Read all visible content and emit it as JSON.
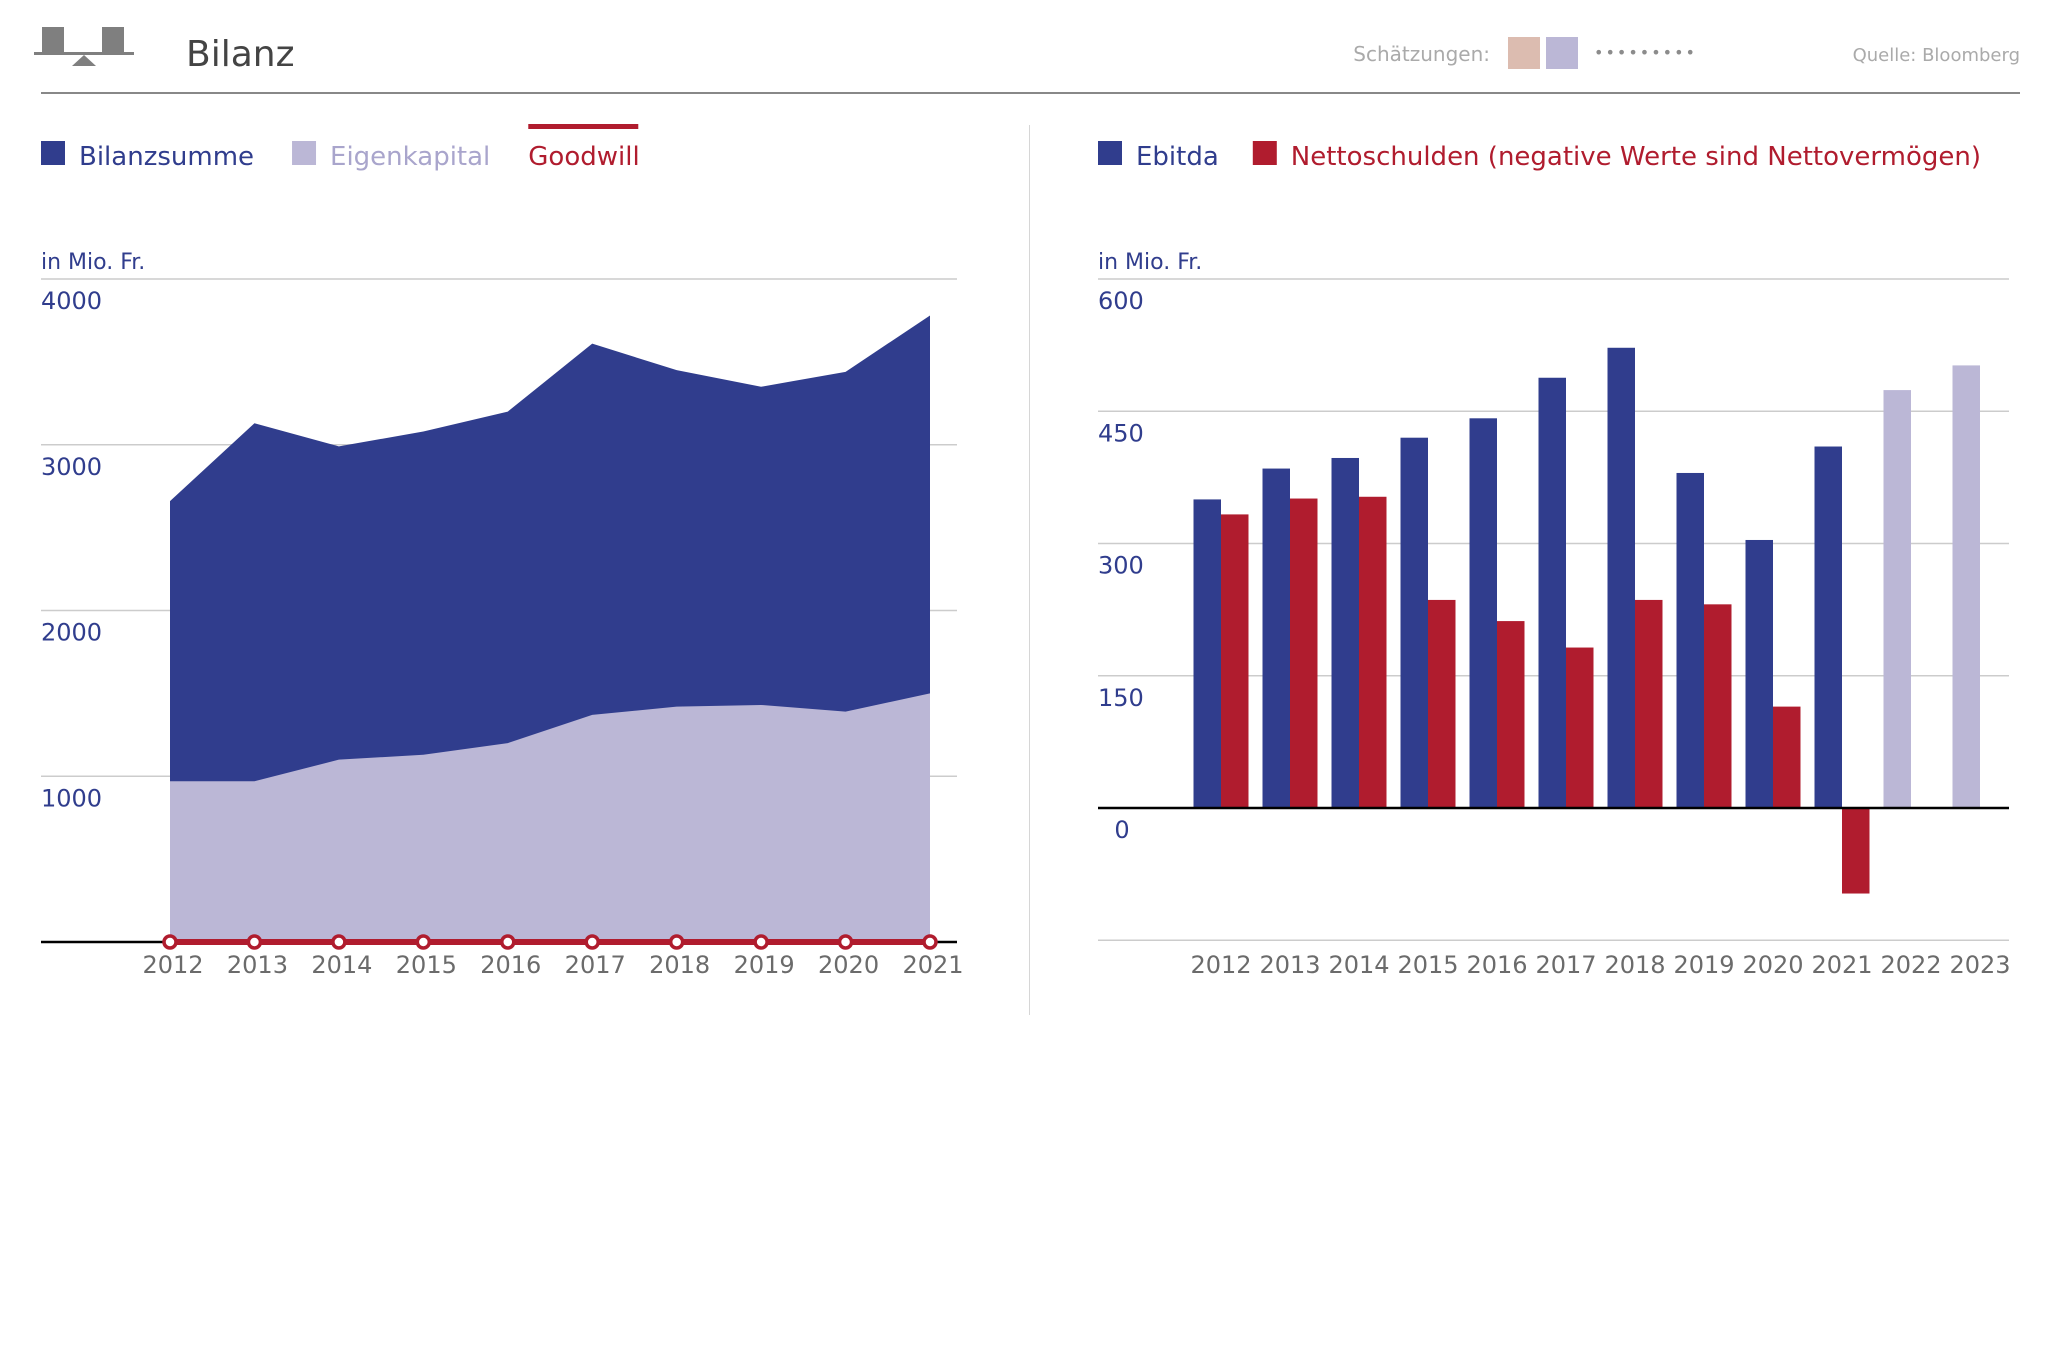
{
  "header": {
    "title": "Bilanz",
    "logo_icon": "balance-scale-icon",
    "estimates_label": "Schätzungen:",
    "estimate_colors": [
      "#dcbcb0",
      "#bbb7d6"
    ],
    "estimate_dots": "•••••••••",
    "source": "Quelle: Bloomberg"
  },
  "colors": {
    "blue": "#303d8d",
    "lavender": "#bbb7d6",
    "red": "#b01c2e",
    "grid": "#cccccc",
    "axis": "#000000",
    "tick_text": "#6b6b6b",
    "legend_blue_text": "#303d8d",
    "legend_lav_text": "#a9a5cc",
    "legend_red_text": "#b01c2e"
  },
  "chart_data": [
    {
      "type": "area",
      "title": "",
      "legend": [
        {
          "label": "Bilanzsumme",
          "kind": "swatch",
          "color": "#303d8d",
          "text_color": "#303d8d"
        },
        {
          "label": "Eigenkapital",
          "kind": "swatch",
          "color": "#bbb7d6",
          "text_color": "#a9a5cc"
        },
        {
          "label": "Goodwill",
          "kind": "line",
          "color": "#b01c2e",
          "text_color": "#b01c2e"
        }
      ],
      "unit_label": "in Mio. Fr.",
      "x": [
        "2012",
        "2013",
        "2014",
        "2015",
        "2016",
        "2017",
        "2018",
        "2019",
        "2020",
        "2021"
      ],
      "series": [
        {
          "name": "Bilanzsumme",
          "values": [
            2660,
            3130,
            2990,
            3080,
            3200,
            3610,
            3450,
            3350,
            3440,
            3780
          ]
        },
        {
          "name": "Eigenkapital",
          "values": [
            970,
            970,
            1100,
            1130,
            1200,
            1370,
            1420,
            1430,
            1390,
            1500
          ]
        },
        {
          "name": "Goodwill",
          "values": [
            0,
            0,
            0,
            0,
            0,
            0,
            0,
            0,
            0,
            0
          ]
        }
      ],
      "yticks": [
        1000,
        2000,
        3000,
        4000
      ],
      "ytick_labels": [
        "1000",
        "2000",
        "3000",
        "4000"
      ],
      "ylim": [
        0,
        4000
      ],
      "grid": true
    },
    {
      "type": "bar",
      "title": "",
      "legend": [
        {
          "label": "Ebitda",
          "kind": "swatch",
          "color": "#303d8d",
          "text_color": "#303d8d"
        },
        {
          "label": "Nettoschulden (negative Werte sind Nettovermögen)",
          "kind": "swatch",
          "color": "#b01c2e",
          "text_color": "#b01c2e"
        }
      ],
      "unit_label": "in Mio. Fr.",
      "categories": [
        "2012",
        "2013",
        "2014",
        "2015",
        "2016",
        "2017",
        "2018",
        "2019",
        "2020",
        "2021",
        "2022",
        "2023"
      ],
      "estimate_categories": [
        "2022",
        "2023"
      ],
      "series": [
        {
          "name": "Ebitda",
          "values": [
            350,
            385,
            397,
            420,
            442,
            488,
            522,
            380,
            304,
            410,
            474,
            502
          ]
        },
        {
          "name": "Nettoschulden",
          "values": [
            333,
            351,
            353,
            236,
            212,
            182,
            236,
            231,
            115,
            -97,
            null,
            null
          ]
        }
      ],
      "yticks": [
        0,
        150,
        300,
        450,
        600
      ],
      "ytick_labels": [
        "0",
        "150",
        "300",
        "450",
        "600"
      ],
      "ylim": [
        -150,
        600
      ],
      "grid": true
    }
  ]
}
